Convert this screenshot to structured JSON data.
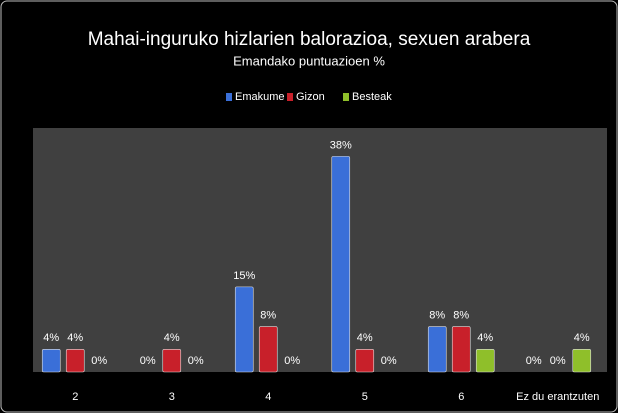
{
  "chart_data": {
    "type": "bar",
    "title": "Mahai-inguruko hizlarien balorazioa, sexuen arabera",
    "subtitle": "Emandako puntuazioen %",
    "categories": [
      "2",
      "3",
      "4",
      "5",
      "6",
      "Ez du erantzuten"
    ],
    "series": [
      {
        "name": "Emakume",
        "color": "#3a6fd8",
        "values": [
          4,
          0,
          15,
          38,
          8,
          0
        ],
        "value_labels": [
          "4%",
          "0%",
          "15%",
          "38%",
          "8%",
          "0%"
        ]
      },
      {
        "name": "Gizon",
        "color": "#c8202a",
        "values": [
          4,
          4,
          8,
          4,
          8,
          0
        ],
        "value_labels": [
          "4%",
          "4%",
          "8%",
          "4%",
          "8%",
          "0%"
        ]
      },
      {
        "name": "Besteak",
        "color": "#8fbf2a",
        "values": [
          0,
          0,
          0,
          0,
          4,
          4
        ],
        "value_labels": [
          "0%",
          "0%",
          "0%",
          "0%",
          "4%",
          "4%"
        ]
      }
    ],
    "ylim": [
      0,
      43
    ],
    "legend": "top"
  }
}
